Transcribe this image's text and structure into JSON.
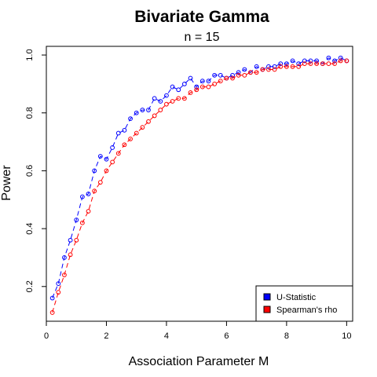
{
  "chart_data": {
    "type": "scatter",
    "title": "Bivariate Gamma",
    "subtitle": "n = 15",
    "xlabel": "Association Parameter M",
    "ylabel": "Power",
    "xlim": [
      0,
      10.2
    ],
    "ylim": [
      0.08,
      1.03
    ],
    "xticks": [
      0,
      2,
      4,
      6,
      8,
      10
    ],
    "yticks": [
      0.2,
      0.4,
      0.6,
      0.8,
      1.0
    ],
    "xtick_labels": [
      "0",
      "2",
      "4",
      "6",
      "8",
      "10"
    ],
    "ytick_labels": [
      "0.2",
      "0.4",
      "0.6",
      "0.8",
      "1.0"
    ],
    "grid": false,
    "legend_position": "bottom-right",
    "x": [
      0.2,
      0.4,
      0.6,
      0.8,
      1.0,
      1.2,
      1.4,
      1.6,
      1.8,
      2.0,
      2.2,
      2.4,
      2.6,
      2.8,
      3.0,
      3.2,
      3.4,
      3.6,
      3.8,
      4.0,
      4.2,
      4.4,
      4.6,
      4.8,
      5.0,
      5.2,
      5.4,
      5.6,
      5.8,
      6.0,
      6.2,
      6.4,
      6.6,
      6.8,
      7.0,
      7.2,
      7.4,
      7.6,
      7.8,
      8.0,
      8.2,
      8.4,
      8.6,
      8.8,
      9.0,
      9.2,
      9.4,
      9.6,
      9.8,
      10.0
    ],
    "series": [
      {
        "name": "U-Statistic",
        "color": "#0000ff",
        "values": [
          0.16,
          0.21,
          0.3,
          0.36,
          0.43,
          0.51,
          0.52,
          0.6,
          0.65,
          0.64,
          0.68,
          0.73,
          0.74,
          0.78,
          0.8,
          0.81,
          0.81,
          0.85,
          0.84,
          0.86,
          0.89,
          0.88,
          0.9,
          0.92,
          0.89,
          0.91,
          0.91,
          0.93,
          0.93,
          0.92,
          0.93,
          0.94,
          0.95,
          0.94,
          0.96,
          0.95,
          0.96,
          0.96,
          0.97,
          0.97,
          0.98,
          0.97,
          0.98,
          0.98,
          0.98,
          0.97,
          0.99,
          0.98,
          0.99,
          0.98
        ]
      },
      {
        "name": "Spearman's rho",
        "color": "#ff0000",
        "values": [
          0.11,
          0.18,
          0.24,
          0.31,
          0.36,
          0.42,
          0.46,
          0.53,
          0.56,
          0.6,
          0.63,
          0.66,
          0.69,
          0.71,
          0.73,
          0.75,
          0.77,
          0.79,
          0.81,
          0.83,
          0.84,
          0.85,
          0.85,
          0.87,
          0.88,
          0.89,
          0.89,
          0.9,
          0.91,
          0.92,
          0.92,
          0.93,
          0.93,
          0.94,
          0.94,
          0.95,
          0.95,
          0.95,
          0.96,
          0.96,
          0.96,
          0.96,
          0.97,
          0.97,
          0.97,
          0.97,
          0.97,
          0.97,
          0.98,
          0.98
        ]
      }
    ]
  }
}
